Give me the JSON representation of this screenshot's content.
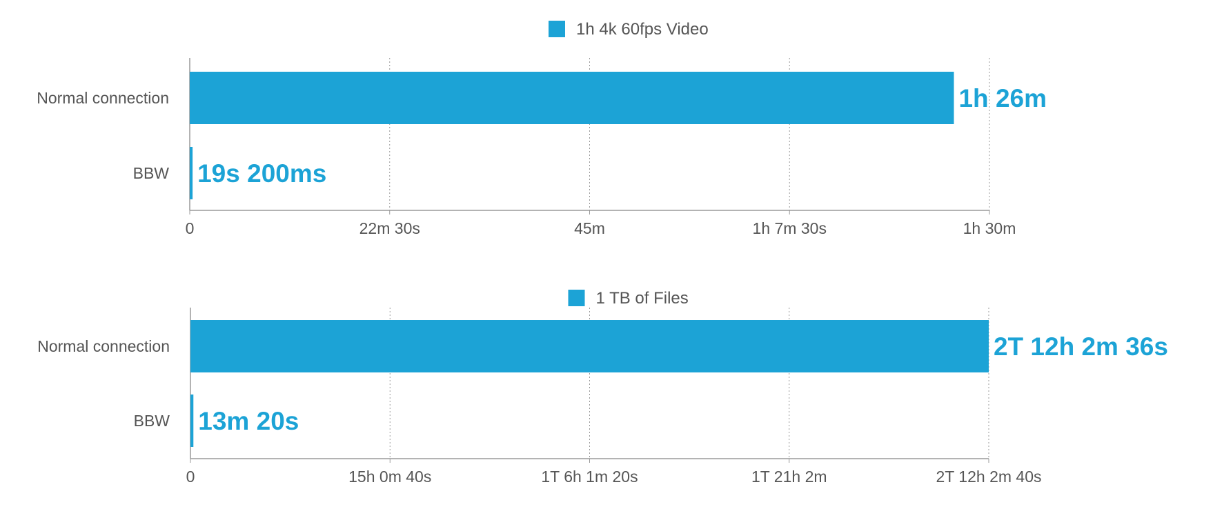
{
  "chart_data": [
    {
      "type": "bar",
      "orientation": "horizontal",
      "legend": "1h 4k 60fps Video",
      "legend_position": "top-center",
      "categories": [
        "Normal connection",
        "BBW"
      ],
      "values": [
        5160,
        19.2
      ],
      "value_labels": [
        "1h 26m",
        "19s 200ms"
      ],
      "xlim": [
        0,
        5400
      ],
      "x_ticks": [
        0,
        1350,
        2700,
        4050,
        5400
      ],
      "x_tick_labels": [
        "0",
        "22m 30s",
        "45m",
        "1h 7m 30s",
        "1h 30m"
      ],
      "grid": "vertical-dotted",
      "color": "#1ca3d6"
    },
    {
      "type": "bar",
      "orientation": "horizontal",
      "legend": "1 TB of Files",
      "legend_position": "top-center",
      "categories": [
        "Normal connection",
        "BBW"
      ],
      "values": [
        216156,
        800
      ],
      "value_labels": [
        "2T 12h 2m 36s",
        "13m 20s"
      ],
      "xlim": [
        0,
        216160
      ],
      "x_ticks": [
        0,
        54040,
        108080,
        162120,
        216160
      ],
      "x_tick_labels": [
        "0",
        "15h 0m 40s",
        "1T 6h 1m 20s",
        "1T 21h 2m",
        "2T 12h 2m 40s"
      ],
      "grid": "vertical-dotted",
      "color": "#1ca3d6"
    }
  ]
}
